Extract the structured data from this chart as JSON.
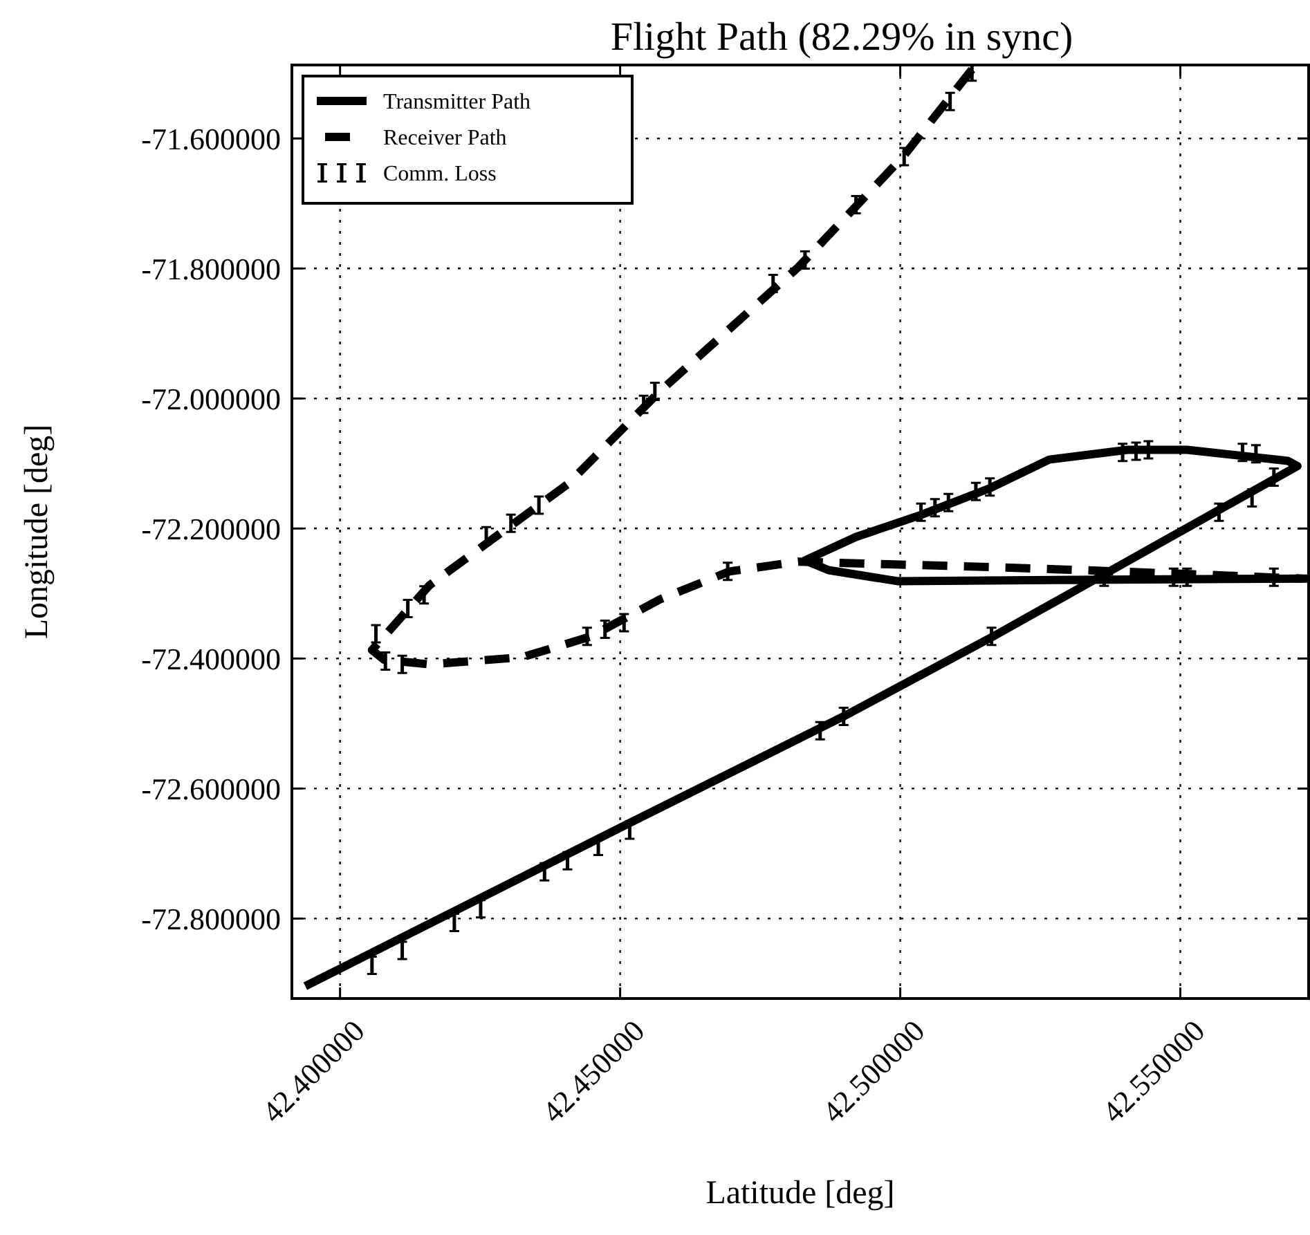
{
  "chart_data": {
    "type": "line",
    "title": "Flight Path (82.29% in sync)",
    "xlabel": "Latitude [deg]",
    "ylabel": "Longitude [deg]",
    "xlim": [
      42.3914,
      42.5729
    ],
    "ylim": [
      -72.923,
      -71.487
    ],
    "xticks": [
      {
        "value": 42.4,
        "label": "42.400000"
      },
      {
        "value": 42.45,
        "label": "42.450000"
      },
      {
        "value": 42.5,
        "label": "42.500000"
      },
      {
        "value": 42.55,
        "label": "42.550000"
      }
    ],
    "yticks": [
      {
        "value": -72.8,
        "label": "-72.800000"
      },
      {
        "value": -72.6,
        "label": "-72.600000"
      },
      {
        "value": -72.4,
        "label": "-72.400000"
      },
      {
        "value": -72.2,
        "label": "-72.200000"
      },
      {
        "value": -72.0,
        "label": "-72.000000"
      },
      {
        "value": -71.8,
        "label": "-71.800000"
      },
      {
        "value": -71.6,
        "label": "-71.600000"
      }
    ],
    "grid": true,
    "legend": "top left",
    "series": [
      {
        "name": "Transmitter Path",
        "line_style": "solid",
        "color": "#000000",
        "x": [
          42.3938,
          42.4517,
          42.4899,
          42.517,
          42.5709,
          42.5692,
          42.5512,
          42.5406,
          42.5266,
          42.516,
          42.5037,
          42.4921,
          42.483,
          42.4872,
          42.4995,
          42.5323,
          42.5727
        ],
        "values": [
          -72.904,
          -72.653,
          -72.489,
          -72.364,
          -72.104,
          -72.096,
          -72.079,
          -72.079,
          -72.094,
          -72.138,
          -72.179,
          -72.213,
          -72.249,
          -72.264,
          -72.281,
          -72.279,
          -72.277
        ]
      },
      {
        "name": "Receiver Path",
        "line_style": "dashed",
        "color": "#000000",
        "x": [
          42.5128,
          42.5005,
          42.4818,
          42.4571,
          42.4406,
          42.416,
          42.4057,
          42.4079,
          42.416,
          42.4325,
          42.4448,
          42.4571,
          42.4695,
          42.4818,
          42.498,
          42.5187,
          42.5323,
          42.5512,
          42.5717
        ],
        "values": [
          -71.494,
          -71.628,
          -71.798,
          -71.989,
          -72.132,
          -72.287,
          -72.387,
          -72.402,
          -72.409,
          -72.398,
          -72.366,
          -72.309,
          -72.266,
          -72.251,
          -72.255,
          -72.26,
          -72.264,
          -72.27,
          -72.277
        ]
      },
      {
        "name": "Comm. Loss",
        "type": "scatter",
        "color": "#000000",
        "x": [
          42.5128,
          42.5089,
          42.5007,
          42.4921,
          42.483,
          42.4773,
          42.4562,
          42.4542,
          42.4355,
          42.4305,
          42.4261,
          42.415,
          42.4121,
          42.4064,
          42.4081,
          42.4111,
          42.4441,
          42.4473,
          42.4507,
          42.4692,
          42.4057,
          42.4111,
          42.4204,
          42.4251,
          42.4365,
          42.4406,
          42.4461,
          42.4517,
          42.4857,
          42.4899,
          42.5163,
          42.5569,
          42.5628,
          42.5667,
          42.5635,
          42.5611,
          42.5443,
          42.5421,
          42.5397,
          42.516,
          42.5135,
          42.5086,
          42.5062,
          42.5037,
          42.5364,
          42.5488,
          42.5512,
          42.5667
        ],
        "values": [
          -71.498,
          -71.543,
          -71.628,
          -71.702,
          -71.787,
          -71.823,
          -71.989,
          -72.009,
          -72.164,
          -72.192,
          -72.211,
          -72.302,
          -72.323,
          -72.362,
          -72.404,
          -72.409,
          -72.366,
          -72.355,
          -72.345,
          -72.266,
          -72.872,
          -72.849,
          -72.806,
          -72.785,
          -72.728,
          -72.711,
          -72.689,
          -72.664,
          -72.511,
          -72.489,
          -72.366,
          -72.175,
          -72.153,
          -72.121,
          -72.085,
          -72.083,
          -72.079,
          -72.081,
          -72.083,
          -72.136,
          -72.143,
          -72.16,
          -72.168,
          -72.175,
          -72.275,
          -72.275,
          -72.275,
          -72.275
        ]
      }
    ]
  }
}
